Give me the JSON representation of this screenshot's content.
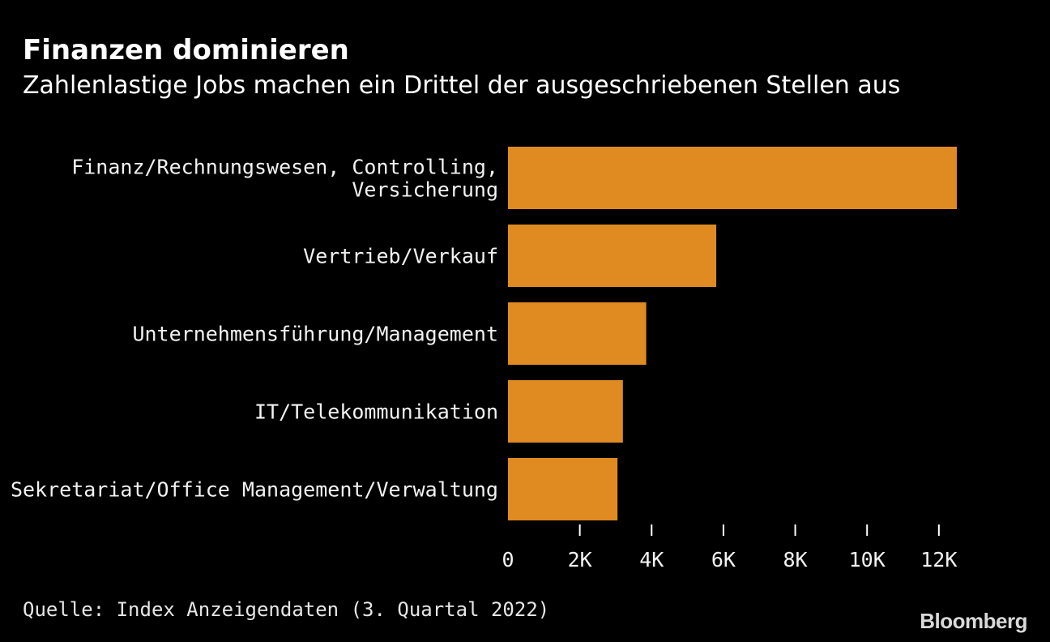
{
  "header": {
    "title": "Finanzen dominieren",
    "subtitle": "Zahlenlastige Jobs machen ein Drittel der ausgeschriebenen Stellen aus"
  },
  "footer": {
    "source": "Quelle: Index Anzeigendaten (3. Quartal 2022)",
    "brand": "Bloomberg"
  },
  "colors": {
    "background": "#000000",
    "bar": "#E08A22",
    "text": "#FFFFFF"
  },
  "chart_data": {
    "type": "bar",
    "orientation": "horizontal",
    "categories": [
      [
        "Finanz/Rechnungswesen, Controlling,",
        "Versicherung"
      ],
      [
        "Vertrieb/Verkauf"
      ],
      [
        "Unternehmensführung/Management"
      ],
      [
        "IT/Telekommunikation"
      ],
      [
        "Sekretariat/Office Management/Verwaltung"
      ]
    ],
    "values": [
      12500,
      5800,
      3850,
      3200,
      3050
    ],
    "xlim": [
      0,
      12500
    ],
    "xticks": [
      0,
      2000,
      4000,
      6000,
      8000,
      10000,
      12000
    ],
    "xtick_labels": [
      "0",
      "2K",
      "4K",
      "6K",
      "8K",
      "10K",
      "12K"
    ],
    "title": "Finanzen dominieren",
    "xlabel": "",
    "ylabel": "",
    "grid": false,
    "legend": "none"
  }
}
